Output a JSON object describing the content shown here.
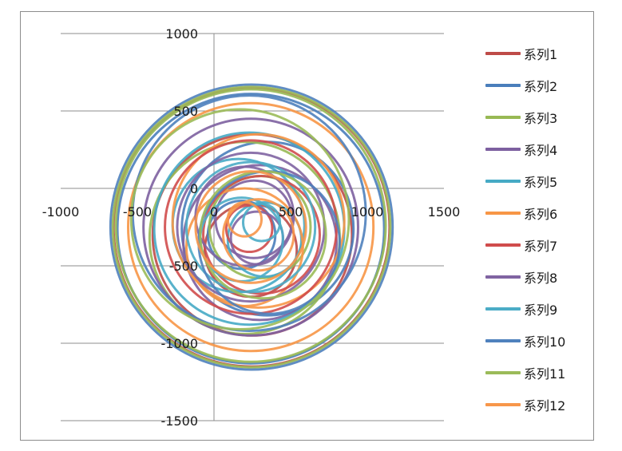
{
  "chart_data": {
    "type": "line",
    "x_axis": {
      "min": -1000,
      "max": 1500,
      "step": 500,
      "ticks": [
        "-1000",
        "-500",
        "0",
        "500",
        "1000",
        "1500"
      ]
    },
    "y_axis": {
      "min": -1500,
      "max": 1000,
      "step": 500,
      "ticks": [
        "1000",
        "500",
        "0",
        "-500",
        "-1000",
        "-1500"
      ]
    },
    "grid": "horizontal",
    "legend_position": "right",
    "series": [
      {
        "name": "系列1",
        "color": "#be4b48",
        "loops": [
          {
            "center": [
              245,
              -250
            ],
            "radius": 900
          },
          {
            "center": [
              250,
              -300
            ],
            "radius": 650
          },
          {
            "center": [
              240,
              -400
            ],
            "radius": 300
          }
        ]
      },
      {
        "name": "系列2",
        "color": "#4a7ebb",
        "loops": [
          {
            "center": [
              240,
              -260
            ],
            "radius": 870
          },
          {
            "center": [
              350,
              -260
            ],
            "radius": 560
          },
          {
            "center": [
              180,
              -300
            ],
            "radius": 220
          }
        ]
      },
      {
        "name": "系列3",
        "color": "#98b954",
        "loops": [
          {
            "center": [
              240,
              -240
            ],
            "radius": 880
          },
          {
            "center": [
              200,
              -320
            ],
            "radius": 620
          },
          {
            "center": [
              300,
              -250
            ],
            "radius": 330
          }
        ]
      },
      {
        "name": "系列4",
        "color": "#7d60a0",
        "loops": [
          {
            "center": [
              240,
              -250
            ],
            "radius": 700
          },
          {
            "center": [
              300,
              -350
            ],
            "radius": 500
          },
          {
            "center": [
              260,
              -200
            ],
            "radius": 250
          }
        ]
      },
      {
        "name": "系列5",
        "color": "#46aac5",
        "loops": [
          {
            "center": [
              230,
              -260
            ],
            "radius": 620
          },
          {
            "center": [
              160,
              -240
            ],
            "radius": 430
          },
          {
            "center": [
              330,
              -330
            ],
            "radius": 240
          }
        ]
      },
      {
        "name": "系列6",
        "color": "#f79646",
        "loops": [
          {
            "center": [
              240,
              -250
            ],
            "radius": 800
          },
          {
            "center": [
              290,
              -210
            ],
            "radius": 560
          },
          {
            "center": [
              200,
              -380
            ],
            "radius": 380
          }
        ]
      },
      {
        "name": "系列7",
        "color": "#d04c4c",
        "loops": [
          {
            "center": [
              240,
              -250
            ],
            "radius": 560
          },
          {
            "center": [
              310,
              -300
            ],
            "radius": 380
          },
          {
            "center": [
              230,
              -260
            ],
            "radius": 150
          }
        ]
      },
      {
        "name": "系列8",
        "color": "#8064a2",
        "loops": [
          {
            "center": [
              240,
              -250
            ],
            "radius": 480
          },
          {
            "center": [
              200,
              -180
            ],
            "radius": 320
          },
          {
            "center": [
              280,
              -320
            ],
            "radius": 170
          }
        ]
      },
      {
        "name": "系列9",
        "color": "#4bacc6",
        "loops": [
          {
            "center": [
              240,
              -250
            ],
            "radius": 420
          },
          {
            "center": [
              180,
              -330
            ],
            "radius": 270
          },
          {
            "center": [
              310,
              -220
            ],
            "radius": 120
          }
        ]
      },
      {
        "name": "系列10",
        "color": "#4f81bd",
        "loops": [
          {
            "center": [
              245,
              -250
            ],
            "radius": 920
          },
          {
            "center": [
              230,
              -160
            ],
            "radius": 760
          },
          {
            "center": [
              360,
              -350
            ],
            "radius": 460
          }
        ]
      },
      {
        "name": "系列11",
        "color": "#9bbb59",
        "loops": [
          {
            "center": [
              245,
              -250
            ],
            "radius": 905
          },
          {
            "center": [
              170,
              -200
            ],
            "radius": 710
          },
          {
            "center": [
              320,
              -300
            ],
            "radius": 410
          }
        ]
      },
      {
        "name": "系列12",
        "color": "#f7964a",
        "loops": [
          {
            "center": [
              240,
              -250
            ],
            "radius": 360
          },
          {
            "center": [
              290,
              -300
            ],
            "radius": 230
          },
          {
            "center": [
              200,
              -200
            ],
            "radius": 110
          }
        ]
      }
    ]
  }
}
